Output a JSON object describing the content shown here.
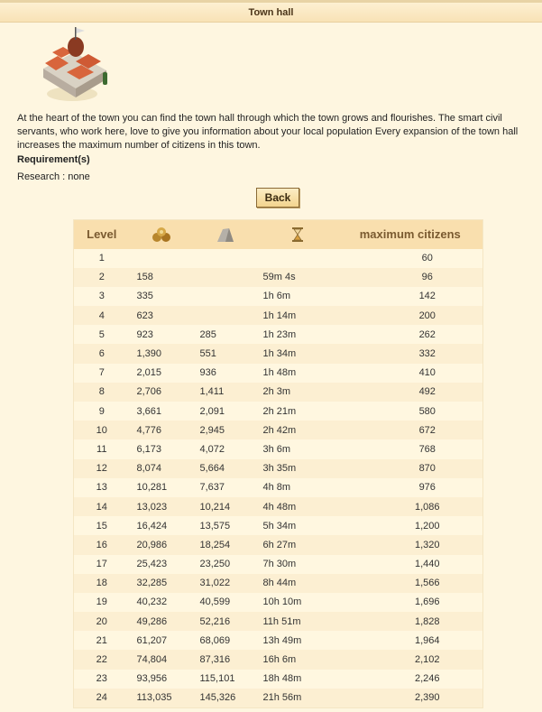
{
  "title": "Town hall",
  "description": "At the heart of the town you can find the town hall through which the town grows and flourishes. The smart civil servants, who work here, love to give you information about your local population Every expansion of the town hall increases the maximum number of citizens in this town.",
  "requirements_label": "Requirement(s)",
  "research": "Research : none",
  "back_label": "Back",
  "table": {
    "headers": {
      "level": "Level",
      "wood_icon": "wood-icon",
      "stone_icon": "stone-icon",
      "time_icon": "hourglass-icon",
      "citizens": "maximum citizens"
    },
    "rows": [
      {
        "level": "1",
        "wood": "",
        "stone": "",
        "time": "",
        "citizens": "60"
      },
      {
        "level": "2",
        "wood": "158",
        "stone": "",
        "time": "59m 4s",
        "citizens": "96"
      },
      {
        "level": "3",
        "wood": "335",
        "stone": "",
        "time": "1h 6m",
        "citizens": "142"
      },
      {
        "level": "4",
        "wood": "623",
        "stone": "",
        "time": "1h 14m",
        "citizens": "200"
      },
      {
        "level": "5",
        "wood": "923",
        "stone": "285",
        "time": "1h 23m",
        "citizens": "262"
      },
      {
        "level": "6",
        "wood": "1,390",
        "stone": "551",
        "time": "1h 34m",
        "citizens": "332"
      },
      {
        "level": "7",
        "wood": "2,015",
        "stone": "936",
        "time": "1h 48m",
        "citizens": "410"
      },
      {
        "level": "8",
        "wood": "2,706",
        "stone": "1,411",
        "time": "2h 3m",
        "citizens": "492"
      },
      {
        "level": "9",
        "wood": "3,661",
        "stone": "2,091",
        "time": "2h 21m",
        "citizens": "580"
      },
      {
        "level": "10",
        "wood": "4,776",
        "stone": "2,945",
        "time": "2h 42m",
        "citizens": "672"
      },
      {
        "level": "11",
        "wood": "6,173",
        "stone": "4,072",
        "time": "3h 6m",
        "citizens": "768"
      },
      {
        "level": "12",
        "wood": "8,074",
        "stone": "5,664",
        "time": "3h 35m",
        "citizens": "870"
      },
      {
        "level": "13",
        "wood": "10,281",
        "stone": "7,637",
        "time": "4h 8m",
        "citizens": "976"
      },
      {
        "level": "14",
        "wood": "13,023",
        "stone": "10,214",
        "time": "4h 48m",
        "citizens": "1,086"
      },
      {
        "level": "15",
        "wood": "16,424",
        "stone": "13,575",
        "time": "5h 34m",
        "citizens": "1,200"
      },
      {
        "level": "16",
        "wood": "20,986",
        "stone": "18,254",
        "time": "6h 27m",
        "citizens": "1,320"
      },
      {
        "level": "17",
        "wood": "25,423",
        "stone": "23,250",
        "time": "7h 30m",
        "citizens": "1,440"
      },
      {
        "level": "18",
        "wood": "32,285",
        "stone": "31,022",
        "time": "8h 44m",
        "citizens": "1,566"
      },
      {
        "level": "19",
        "wood": "40,232",
        "stone": "40,599",
        "time": "10h 10m",
        "citizens": "1,696"
      },
      {
        "level": "20",
        "wood": "49,286",
        "stone": "52,216",
        "time": "11h 51m",
        "citizens": "1,828"
      },
      {
        "level": "21",
        "wood": "61,207",
        "stone": "68,069",
        "time": "13h 49m",
        "citizens": "1,964"
      },
      {
        "level": "22",
        "wood": "74,804",
        "stone": "87,316",
        "time": "16h 6m",
        "citizens": "2,102"
      },
      {
        "level": "23",
        "wood": "93,956",
        "stone": "115,101",
        "time": "18h 48m",
        "citizens": "2,246"
      },
      {
        "level": "24",
        "wood": "113,035",
        "stone": "145,326",
        "time": "21h 56m",
        "citizens": "2,390"
      }
    ]
  }
}
